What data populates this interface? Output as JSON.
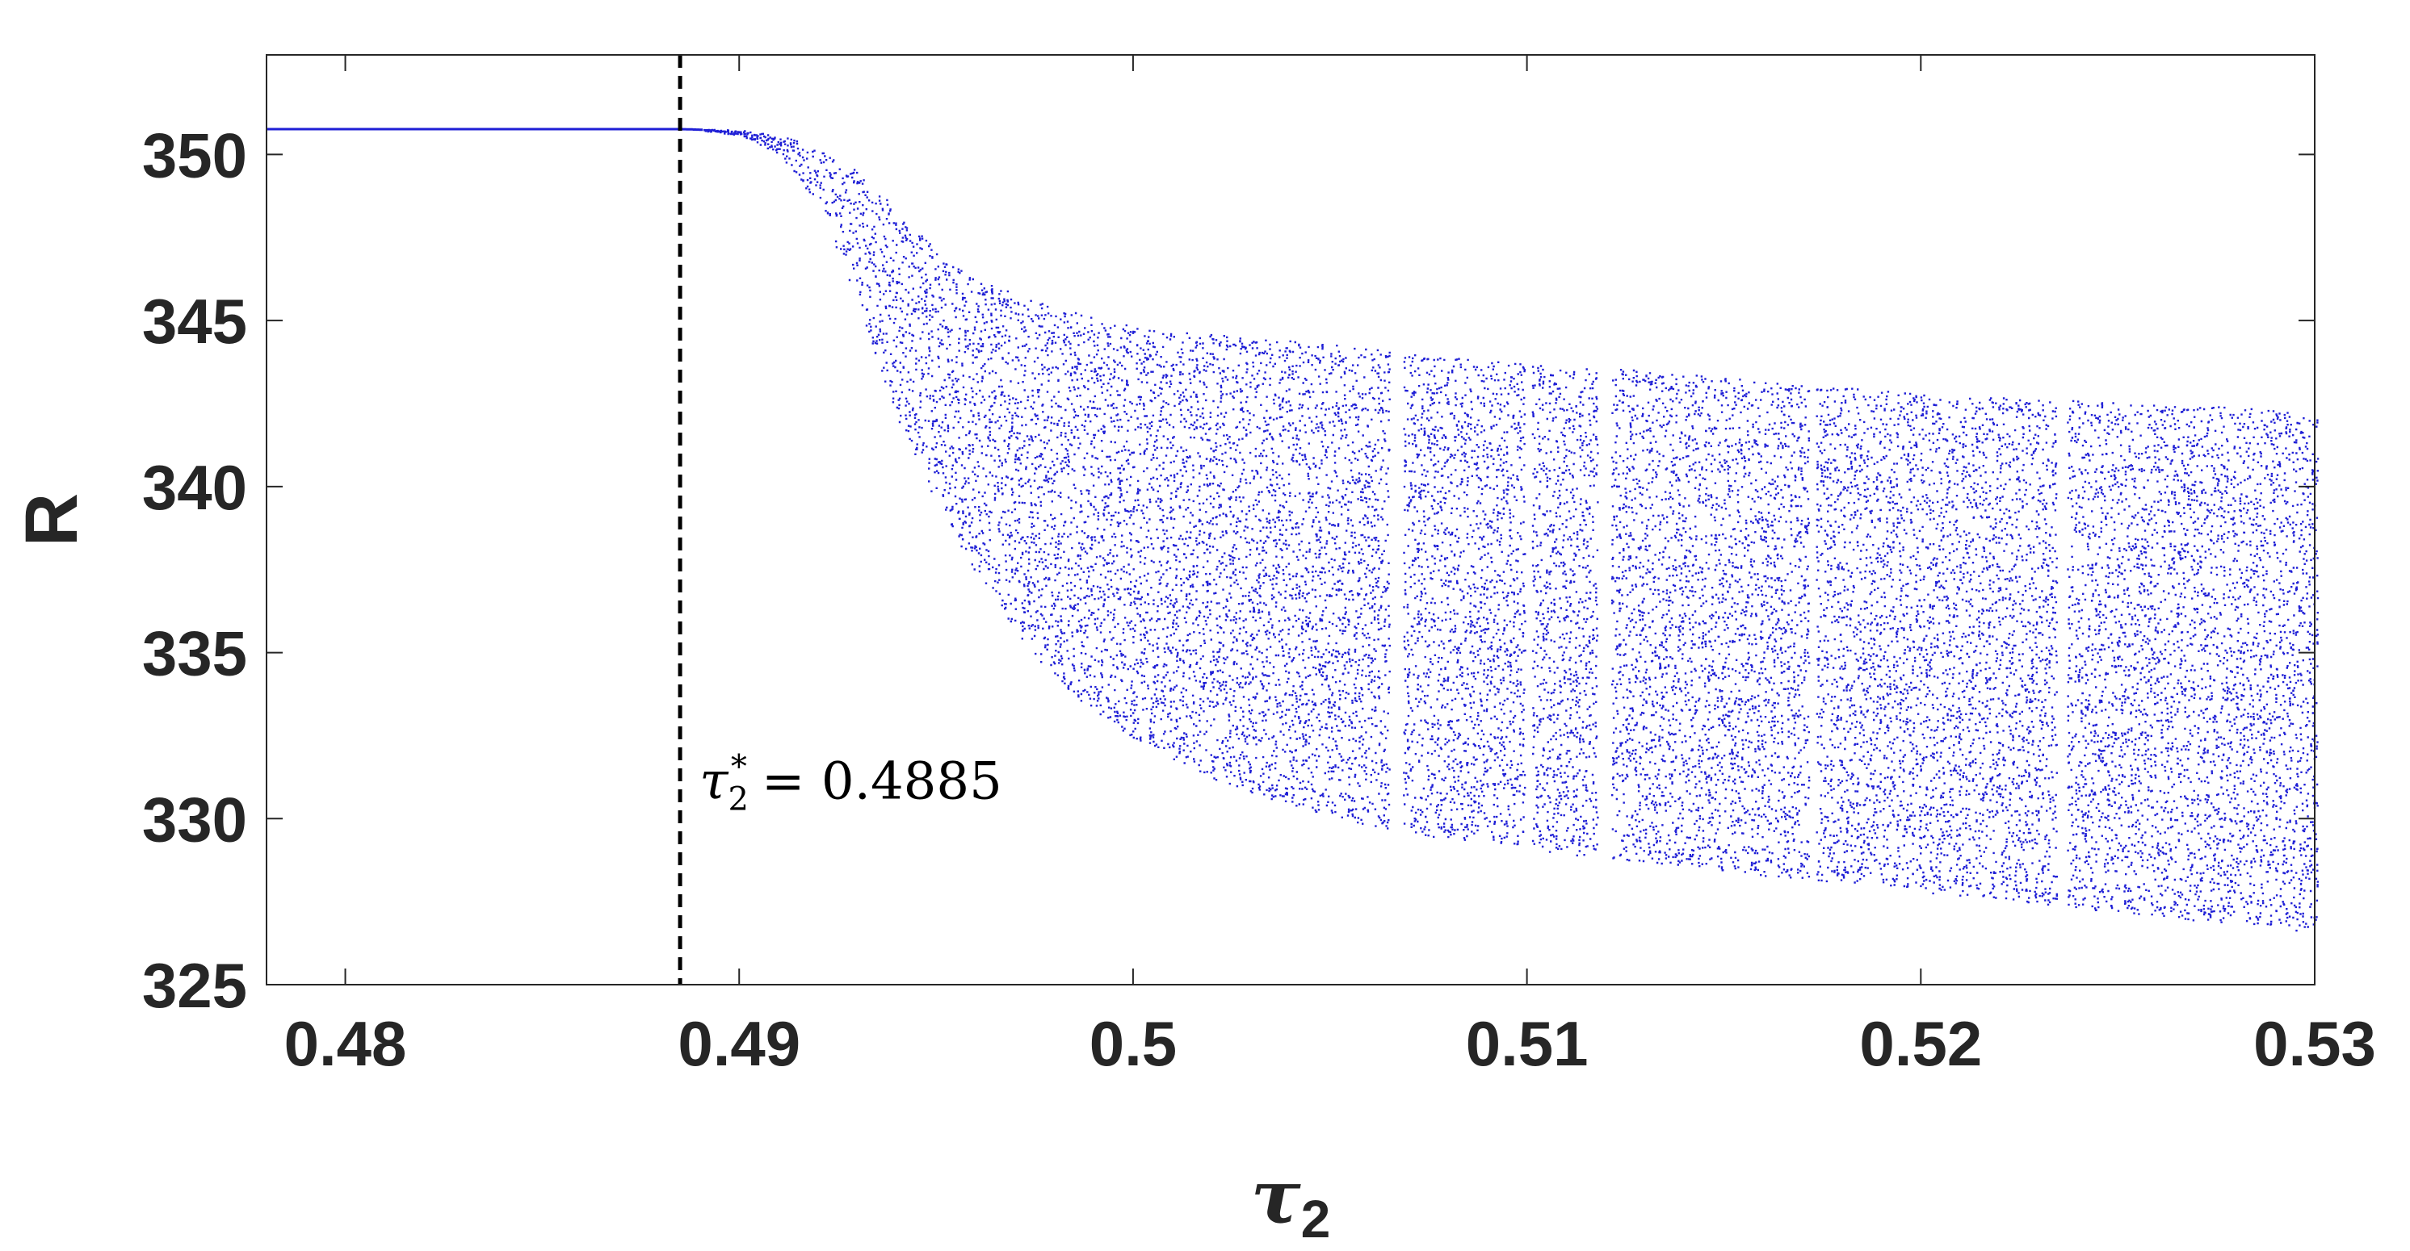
{
  "chart_data": {
    "type": "scatter",
    "title": "",
    "xlabel": {
      "symbol": "τ",
      "subscript": "2"
    },
    "ylabel": "R",
    "xlim": [
      0.478,
      0.53
    ],
    "ylim": [
      325,
      353
    ],
    "xticks": [
      0.48,
      0.49,
      0.5,
      0.51,
      0.52,
      0.53
    ],
    "xtick_labels": [
      "0.48",
      "0.49",
      "0.5",
      "0.51",
      "0.52",
      "0.53"
    ],
    "yticks": [
      325,
      330,
      335,
      340,
      345,
      350
    ],
    "ytick_labels": [
      "325",
      "330",
      "335",
      "340",
      "345",
      "350"
    ],
    "grid": false,
    "point_color": "#1f1fd6",
    "threshold": {
      "x": 0.4885,
      "style": "dashed",
      "color": "#000000",
      "label_symbol": "τ",
      "label_sub": "2",
      "label_sup": "*",
      "label_rest": "= 0.4885"
    },
    "series": [
      {
        "envelope": {
          "x": [
            0.478,
            0.4885,
            0.49,
            0.491,
            0.492,
            0.493,
            0.494,
            0.495,
            0.496,
            0.497,
            0.498,
            0.499,
            0.5,
            0.502,
            0.504,
            0.506,
            0.508,
            0.51,
            0.512,
            0.514,
            0.516,
            0.518,
            0.52,
            0.522,
            0.524,
            0.526,
            0.528,
            0.53
          ],
          "upper": [
            350.8,
            350.8,
            350.75,
            350.6,
            350.2,
            349.5,
            348.3,
            347.1,
            346.3,
            345.8,
            345.4,
            345.1,
            344.9,
            344.6,
            344.4,
            344.2,
            343.9,
            343.7,
            343.6,
            343.4,
            343.2,
            343.0,
            342.8,
            342.7,
            342.6,
            342.5,
            342.4,
            342.2
          ],
          "lower": [
            350.8,
            350.8,
            350.6,
            350.0,
            348.5,
            345.5,
            342.0,
            339.5,
            337.4,
            335.6,
            334.2,
            333.2,
            332.4,
            331.2,
            330.4,
            329.8,
            329.4,
            329.1,
            328.8,
            328.6,
            328.3,
            328.1,
            327.8,
            327.6,
            327.3,
            327.1,
            326.8,
            326.6
          ]
        },
        "gaps": [
          [
            0.5065,
            0.5068
          ],
          [
            0.5099,
            0.5101
          ],
          [
            0.5118,
            0.5121
          ],
          [
            0.5171,
            0.5173
          ],
          [
            0.5234,
            0.5237
          ]
        ]
      }
    ]
  }
}
